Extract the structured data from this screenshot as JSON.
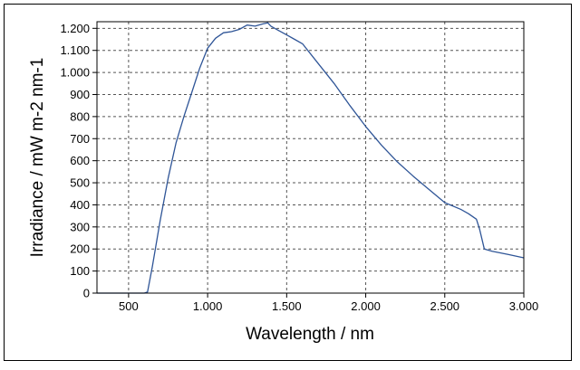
{
  "chart_data": {
    "type": "line",
    "title": "",
    "xlabel": "Wavelength / nm",
    "ylabel": "Irradiance / mW m-2 nm-1",
    "xlim": [
      300,
      3000
    ],
    "ylim": [
      0,
      1230
    ],
    "grid": true,
    "xticks": [
      500,
      1000,
      1500,
      2000,
      2500,
      3000
    ],
    "xtick_labels": [
      "500",
      "1.000",
      "1.500",
      "2.000",
      "2.500",
      "3.000"
    ],
    "yticks": [
      0,
      100,
      200,
      300,
      400,
      500,
      600,
      700,
      800,
      900,
      1000,
      1100,
      1200
    ],
    "ytick_labels": [
      "0",
      "100",
      "200",
      "300",
      "400",
      "500",
      "600",
      "700",
      "800",
      "900",
      "1.000",
      "1.100",
      "1.200"
    ],
    "series": [
      {
        "color": "#2f5597",
        "x": [
          300,
          500,
          600,
          620,
          650,
          700,
          750,
          800,
          850,
          900,
          950,
          1000,
          1050,
          1100,
          1150,
          1200,
          1250,
          1300,
          1350,
          1380,
          1400,
          1450,
          1500,
          1550,
          1600,
          1700,
          1800,
          1900,
          2000,
          2100,
          2200,
          2300,
          2400,
          2500,
          2600,
          2650,
          2700,
          2720,
          2750,
          2800,
          2900,
          3000
        ],
        "y": [
          0,
          0,
          0,
          5,
          120,
          330,
          520,
          680,
          800,
          910,
          1020,
          1110,
          1155,
          1180,
          1185,
          1195,
          1215,
          1210,
          1220,
          1225,
          1210,
          1190,
          1170,
          1150,
          1130,
          1040,
          950,
          850,
          755,
          670,
          595,
          530,
          470,
          410,
          380,
          360,
          335,
          290,
          200,
          190,
          175,
          160
        ]
      }
    ]
  }
}
